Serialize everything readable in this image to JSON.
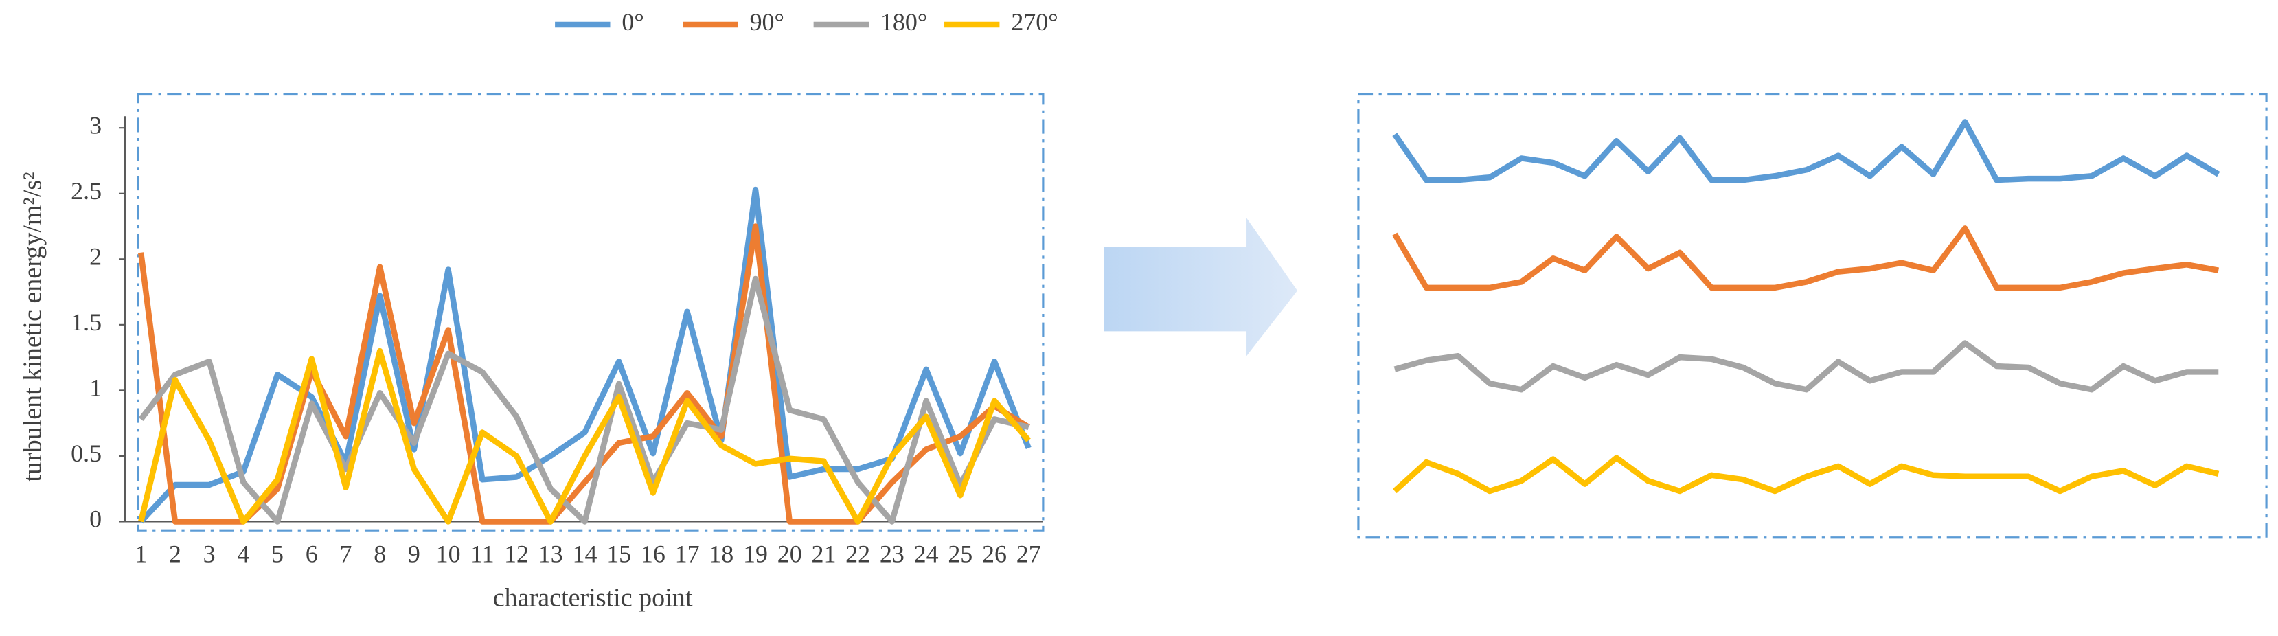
{
  "chart_data": [
    {
      "type": "line",
      "x_label": "characteristic point",
      "y_label": "turbulent kinetic energy/m²/s²",
      "categories": [
        "1",
        "2",
        "3",
        "4",
        "5",
        "6",
        "7",
        "8",
        "9",
        "10",
        "11",
        "12",
        "13",
        "14",
        "15",
        "16",
        "17",
        "18",
        "19",
        "20",
        "21",
        "22",
        "23",
        "24",
        "25",
        "26",
        "27"
      ],
      "ylim": [
        0,
        3
      ],
      "yticks": [
        0,
        0.5,
        1,
        1.5,
        2,
        2.5,
        3
      ],
      "legend": "top",
      "series": [
        {
          "name": "0°",
          "color": "#5b9bd5",
          "values": [
            0,
            0.28,
            0.28,
            0.38,
            1.12,
            0.95,
            0.45,
            1.72,
            0.55,
            1.92,
            0.32,
            0.34,
            0.5,
            0.68,
            1.22,
            0.52,
            1.6,
            0.62,
            2.53,
            0.34,
            0.4,
            0.4,
            0.48,
            1.16,
            0.52,
            1.22,
            0.56
          ]
        },
        {
          "name": "90°",
          "color": "#ed7d31",
          "values": [
            2.05,
            0,
            0,
            0,
            0.25,
            1.15,
            0.65,
            1.94,
            0.75,
            1.46,
            0,
            0,
            0,
            0.3,
            0.6,
            0.65,
            0.98,
            0.65,
            2.25,
            0,
            0,
            0,
            0.3,
            0.55,
            0.65,
            0.88,
            0.72
          ]
        },
        {
          "name": "180°",
          "color": "#a5a5a5",
          "values": [
            0.78,
            1.12,
            1.22,
            0.3,
            0,
            0.9,
            0.4,
            0.98,
            0.6,
            1.28,
            1.14,
            0.8,
            0.25,
            0,
            1.05,
            0.3,
            0.75,
            0.7,
            1.85,
            0.85,
            0.78,
            0.3,
            0,
            0.92,
            0.28,
            0.78,
            0.72
          ]
        },
        {
          "name": "270°",
          "color": "#ffc000",
          "values": [
            0,
            1.08,
            0.62,
            0,
            0.32,
            1.24,
            0.26,
            1.3,
            0.4,
            0,
            0.68,
            0.5,
            0,
            0.5,
            0.95,
            0.22,
            0.92,
            0.58,
            0.44,
            0.48,
            0.46,
            0,
            0.5,
            0.8,
            0.2,
            0.92,
            0.62
          ]
        }
      ]
    },
    {
      "type": "line",
      "ylim": [
        0,
        100
      ],
      "series": [
        {
          "color": "#5b9bd5",
          "values": [
            91,
            80.7,
            80.7,
            81.3,
            85.6,
            84.6,
            81.6,
            89.5,
            82.6,
            90.2,
            80.7,
            80.7,
            81.6,
            83,
            86.2,
            81.6,
            88.2,
            82,
            93.8,
            80.7,
            81,
            81,
            81.6,
            85.6,
            81.6,
            86.2,
            82
          ]
        },
        {
          "color": "#ed7d31",
          "values": [
            68.5,
            56.4,
            56.4,
            56.4,
            57.7,
            63,
            60.3,
            67.9,
            60.7,
            64.3,
            56.4,
            56.4,
            56.4,
            57.7,
            60,
            60.7,
            62,
            60.3,
            69.8,
            56.4,
            56.4,
            56.4,
            57.7,
            59.7,
            60.7,
            61.6,
            60.3
          ]
        },
        {
          "color": "#a5a5a5",
          "values": [
            38,
            40,
            41,
            34.8,
            33.4,
            38.7,
            36.1,
            39,
            36.7,
            40.7,
            40.3,
            38.4,
            34.8,
            33.4,
            39.7,
            35.4,
            37.4,
            37.4,
            43.9,
            38.7,
            38.4,
            34.8,
            33.4,
            38.7,
            35.4,
            37.4,
            37.4
          ]
        },
        {
          "color": "#ffc000",
          "values": [
            10.5,
            17,
            14.4,
            10.5,
            12.8,
            17.7,
            12.1,
            18,
            12.8,
            10.5,
            14.1,
            13.1,
            10.5,
            13.8,
            16.1,
            12.1,
            16.1,
            14.1,
            13.8,
            13.8,
            13.8,
            10.5,
            13.8,
            15.1,
            11.8,
            16.1,
            14.4
          ]
        }
      ]
    }
  ]
}
